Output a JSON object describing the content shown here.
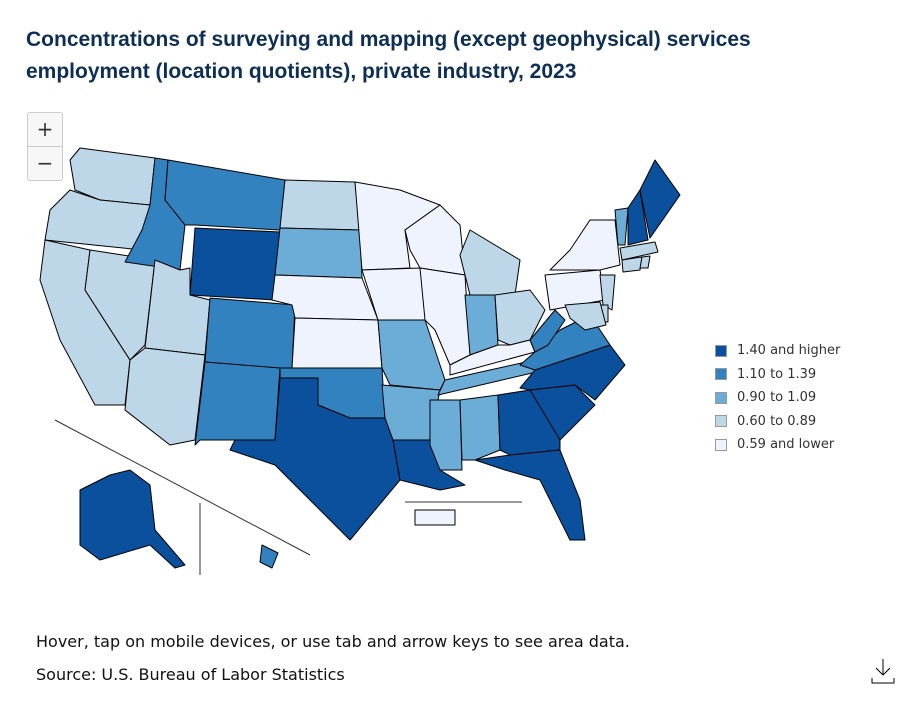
{
  "title": "Concentrations of surveying and mapping (except geophysical) services employment (location quotients), private industry, 2023",
  "zoom": {
    "in": "+",
    "out": "−"
  },
  "legend": [
    {
      "label": "1.40 and higher",
      "color": "#0b509c"
    },
    {
      "label": "1.10 to 1.39",
      "color": "#3282bf"
    },
    {
      "label": "0.90 to 1.09",
      "color": "#6badd6"
    },
    {
      "label": "0.60 to 0.89",
      "color": "#bed7e8"
    },
    {
      "label": "0.59 and lower",
      "color": "#eff3fe"
    }
  ],
  "map": {
    "areas": [
      3,
      3,
      3,
      3,
      1,
      1,
      0,
      3,
      3,
      1,
      1,
      3,
      2,
      4,
      4,
      1,
      0,
      4,
      4,
      2,
      2,
      0,
      4,
      4,
      3,
      2,
      3,
      4,
      2,
      2,
      2,
      0,
      0,
      0,
      0,
      1,
      1,
      4,
      4,
      2,
      0,
      0,
      3,
      3,
      3,
      3,
      3,
      3,
      0,
      1,
      4
    ]
  },
  "notes": [
    "Hover, tap on mobile devices, or use tab and arrow keys to see area data.",
    "Source: U.S. Bureau of Labor Statistics"
  ]
}
